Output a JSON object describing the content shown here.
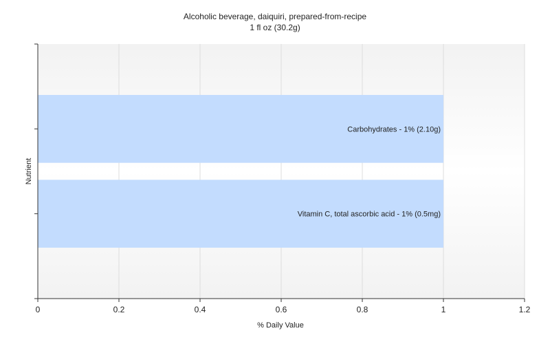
{
  "chart_data": {
    "type": "bar",
    "orientation": "horizontal",
    "title": "Alcoholic beverage, daiquiri, prepared-from-recipe",
    "subtitle": "1 fl oz (30.2g)",
    "xlabel": "% Daily Value",
    "ylabel": "Nutrient",
    "xlim": [
      0,
      1.2
    ],
    "xticks": [
      "0",
      "0.2",
      "0.4",
      "0.6",
      "0.8",
      "1",
      "1.2"
    ],
    "grid": true,
    "legend": "none",
    "bar_color": "#c3dcfe",
    "bars": [
      {
        "category": "Carbohydrates",
        "value": 1,
        "label": "Carbohydrates - 1% (2.10g)"
      },
      {
        "category": "Vitamin C, total ascorbic acid",
        "value": 1,
        "label": "Vitamin C, total ascorbic acid - 1% (0.5mg)"
      }
    ]
  }
}
